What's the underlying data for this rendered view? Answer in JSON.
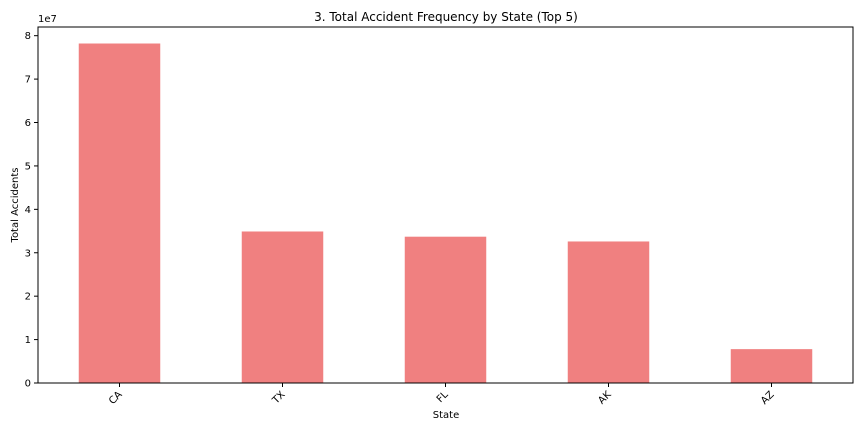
{
  "chart_data": {
    "type": "bar",
    "title": "3. Total Accident Frequency by State (Top 5)",
    "xlabel": "State",
    "ylabel": "Total Accidents",
    "scale_label": "1e7",
    "categories": [
      "CA",
      "TX",
      "FL",
      "AK",
      "AZ"
    ],
    "values": [
      78200000,
      34900000,
      33700000,
      32600000,
      7800000
    ],
    "ylim": [
      0,
      82000000
    ],
    "yticks": [
      0,
      1,
      2,
      3,
      4,
      5,
      6,
      7,
      8
    ],
    "ytick_multiplier": 10000000,
    "bar_color": "#f08080",
    "grid": false,
    "legend": "none"
  }
}
